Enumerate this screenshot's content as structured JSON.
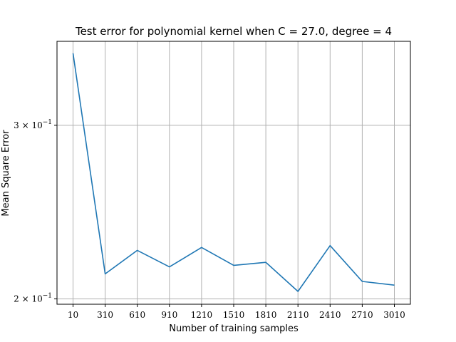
{
  "chart_data": {
    "type": "line",
    "title": "Test error for polynomial kernel when C = 27.0, degree = 4",
    "xlabel": "Number of training samples",
    "ylabel": "Mean Square Error",
    "yscale": "log",
    "ylim": [
      0.1975,
      0.365
    ],
    "grid": true,
    "x": [
      10,
      310,
      610,
      910,
      1210,
      1510,
      1810,
      2110,
      2410,
      2710,
      3010
    ],
    "series": [
      {
        "values": [
          0.355,
          0.212,
          0.224,
          0.2155,
          0.2255,
          0.2163,
          0.2178,
          0.2035,
          0.2265,
          0.2083,
          0.2065
        ],
        "color": "#1f77b4"
      }
    ],
    "xticks": [
      "10",
      "310",
      "610",
      "910",
      "1210",
      "1510",
      "1810",
      "2110",
      "2410",
      "2710",
      "3010"
    ],
    "yticks": [
      {
        "value": 0.2,
        "base": "2",
        "mult": "×",
        "power": "10",
        "exp": "−1"
      },
      {
        "value": 0.3,
        "base": "3",
        "mult": "×",
        "power": "10",
        "exp": "−1"
      }
    ]
  }
}
